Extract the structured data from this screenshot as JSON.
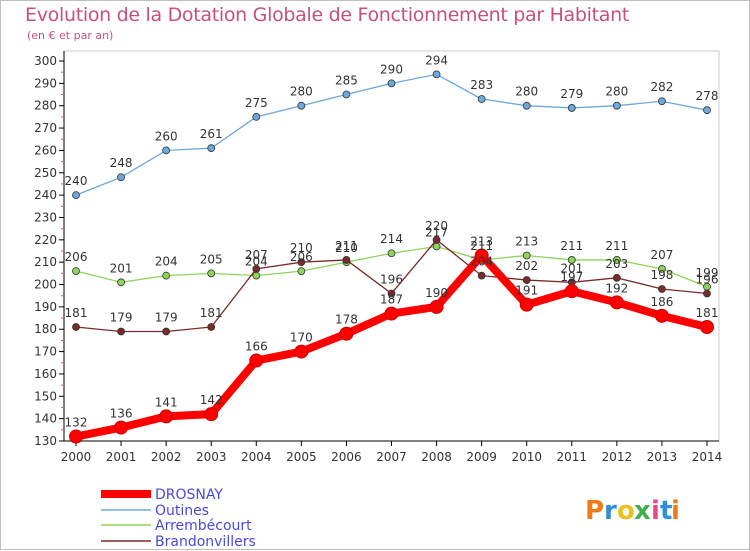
{
  "header": {
    "title": "Evolution de la Dotation Globale de Fonctionnement par Habitant",
    "subtitle": "(en € et par an)"
  },
  "logo": {
    "text": "Proxiti",
    "colors": [
      "#f07a1a",
      "#2f8fd8",
      "#e8c21e",
      "#3fb04a",
      "#e84a8a",
      "#2f8fd8",
      "#f07a1a"
    ]
  },
  "chart_data": {
    "type": "line",
    "x": [
      "2000",
      "2001",
      "2002",
      "2003",
      "2004",
      "2005",
      "2006",
      "2007",
      "2008",
      "2009",
      "2010",
      "2011",
      "2012",
      "2013",
      "2014"
    ],
    "ylim": [
      130,
      300
    ],
    "yticks": [
      130,
      140,
      150,
      160,
      170,
      180,
      190,
      200,
      210,
      220,
      230,
      240,
      250,
      260,
      270,
      280,
      290,
      300
    ],
    "grid": false,
    "legend_position": "bottom-left",
    "series": [
      {
        "name": "DROSNAY",
        "color": "#ff0000",
        "values": [
          132,
          136,
          141,
          142,
          166,
          170,
          178,
          187,
          190,
          213,
          191,
          197,
          192,
          186,
          181
        ],
        "labels": [
          "132",
          "136",
          "141",
          "142",
          "166",
          "170",
          "178",
          "187",
          "190",
          "213",
          "191",
          "197",
          "192",
          "186",
          "181"
        ]
      },
      {
        "name": "Outines",
        "color": "#6fa8dc",
        "values": [
          240,
          248,
          260,
          261,
          275,
          280,
          285,
          290,
          294,
          283,
          280,
          279,
          280,
          282,
          278
        ],
        "labels": [
          "240",
          "248",
          "260",
          "261",
          "275",
          "280",
          "285",
          "290",
          "294",
          "283",
          "280",
          "279",
          "280",
          "282",
          "278"
        ]
      },
      {
        "name": "Arrembécourt",
        "color": "#8fd45a",
        "values": [
          206,
          201,
          204,
          205,
          204,
          206,
          210,
          214,
          217,
          211,
          213,
          211,
          211,
          207,
          199
        ],
        "labels": [
          "206",
          "201",
          "204",
          "205",
          "204",
          "206",
          "210",
          "214",
          "217",
          "211",
          "213",
          "211",
          "211",
          "207",
          "199"
        ]
      },
      {
        "name": "Brandonvillers",
        "color": "#7a2a2a",
        "values": [
          181,
          179,
          179,
          181,
          207,
          210,
          211,
          196,
          220,
          204,
          202,
          201,
          203,
          198,
          196
        ],
        "labels": [
          "181",
          "179",
          "179",
          "181",
          "207",
          "210",
          "211",
          "196",
          "220",
          "204",
          "202",
          "201",
          "203",
          "198",
          "196"
        ]
      }
    ]
  }
}
